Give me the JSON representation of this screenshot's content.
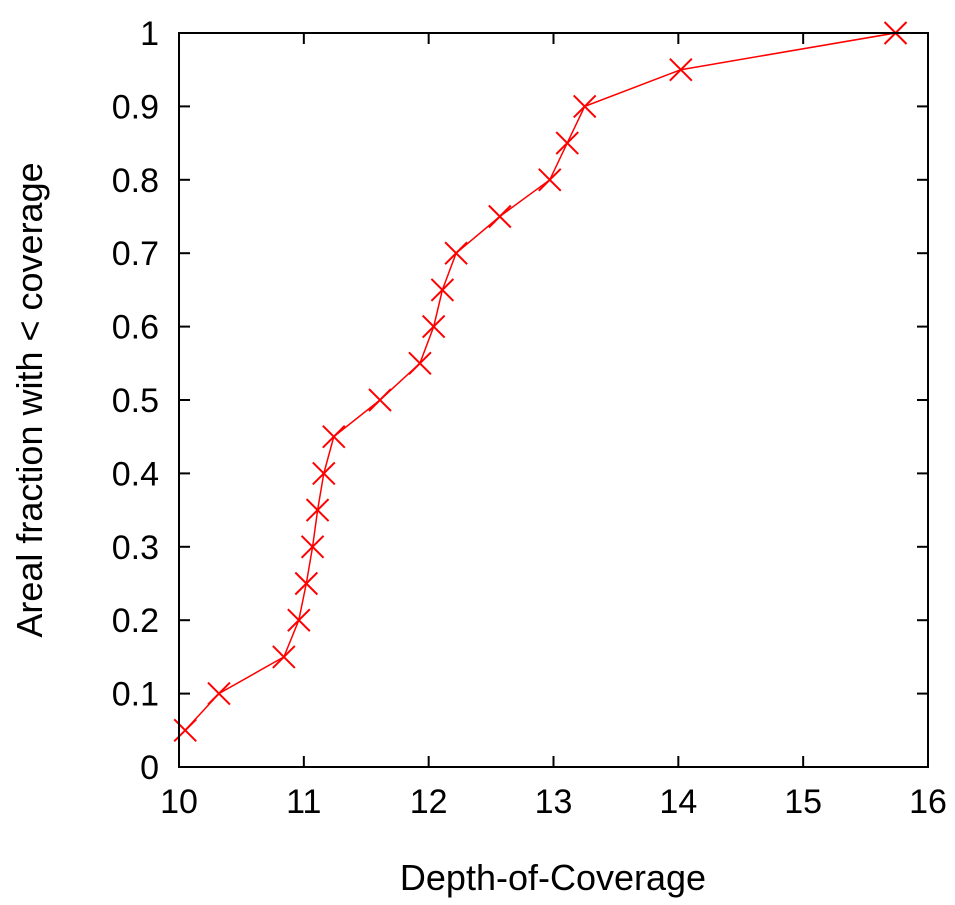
{
  "chart_data": {
    "type": "line",
    "title": "",
    "xlabel": "Depth-of-Coverage",
    "ylabel": "Areal fraction with < coverage",
    "xlim": [
      10,
      16
    ],
    "ylim": [
      0,
      1
    ],
    "x_ticks": [
      "10",
      "11",
      "12",
      "13",
      "14",
      "15",
      "16"
    ],
    "y_ticks": [
      "0",
      "0.1",
      "0.2",
      "0.3",
      "0.4",
      "0.5",
      "0.6",
      "0.7",
      "0.8",
      "0.9",
      "1"
    ],
    "grid": false,
    "legend": "none",
    "series": [
      {
        "color": "#ff0000",
        "marker": "x",
        "points": [
          {
            "x": 10.05,
            "y": 0.05
          },
          {
            "x": 10.32,
            "y": 0.1
          },
          {
            "x": 10.84,
            "y": 0.15
          },
          {
            "x": 10.96,
            "y": 0.2
          },
          {
            "x": 11.02,
            "y": 0.25
          },
          {
            "x": 11.07,
            "y": 0.3
          },
          {
            "x": 11.11,
            "y": 0.35
          },
          {
            "x": 11.16,
            "y": 0.4
          },
          {
            "x": 11.24,
            "y": 0.45
          },
          {
            "x": 11.61,
            "y": 0.5
          },
          {
            "x": 11.93,
            "y": 0.55
          },
          {
            "x": 12.04,
            "y": 0.6
          },
          {
            "x": 12.11,
            "y": 0.65
          },
          {
            "x": 12.22,
            "y": 0.7
          },
          {
            "x": 12.57,
            "y": 0.75
          },
          {
            "x": 12.97,
            "y": 0.8
          },
          {
            "x": 13.11,
            "y": 0.85
          },
          {
            "x": 13.25,
            "y": 0.9
          },
          {
            "x": 14.02,
            "y": 0.95
          },
          {
            "x": 15.74,
            "y": 1.0
          }
        ]
      }
    ]
  }
}
